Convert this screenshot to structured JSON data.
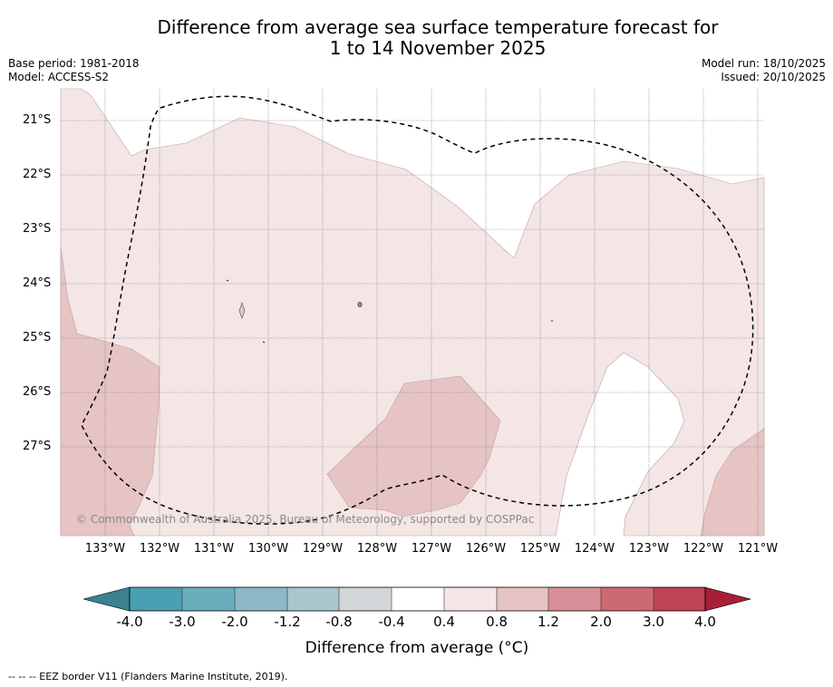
{
  "title_line1": "Difference from average sea surface temperature forecast for",
  "title_line2": "1 to 14 November 2025",
  "base_period": "Base period: 1981-2018",
  "model": "Model: ACCESS-S2",
  "model_run": "Model run: 18/10/2025",
  "issued": "Issued: 20/10/2025",
  "latitude_labels": [
    "21°S",
    "22°S",
    "23°S",
    "24°S",
    "25°S",
    "26°S",
    "27°S"
  ],
  "longitude_labels": [
    "133°W",
    "132°W",
    "131°W",
    "130°W",
    "129°W",
    "128°W",
    "127°W",
    "126°W",
    "125°W",
    "124°W",
    "123°W",
    "122°W",
    "121°W"
  ],
  "copyright": "© Commonwealth of Australia 2025, Bureau of Meteorology, supported by COSPPac",
  "colorbar": {
    "ticks": [
      "-4.0",
      "-3.0",
      "-2.0",
      "-1.2",
      "-0.8",
      "-0.4",
      "0.4",
      "0.8",
      "1.2",
      "2.0",
      "3.0",
      "4.0"
    ],
    "colors": [
      "#3b8190",
      "#4aa0b2",
      "#6aaebc",
      "#8cb9c5",
      "#a8c7cd",
      "#d2d6d8",
      "#ffffff",
      "#f5e6e6",
      "#e6c4c3",
      "#d88f98",
      "#cc6a74",
      "#be4355",
      "#a81e38"
    ],
    "title": "Difference from average (°C)"
  },
  "map_fill_colors": {
    "light": "#f5e6e6",
    "medium": "#e6c4c3",
    "outline": "#999999"
  },
  "footnote": "--  --  -- EEZ border V11 (Flanders Marine Institute, 2019)."
}
